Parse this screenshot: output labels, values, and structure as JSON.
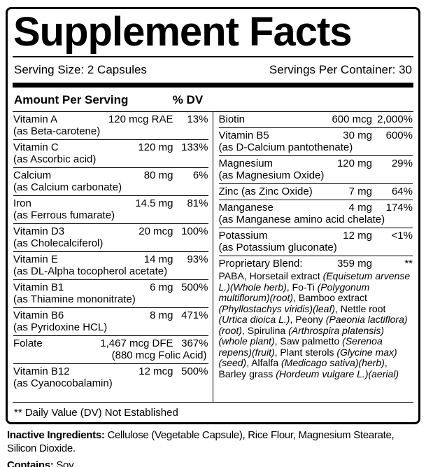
{
  "colors": {
    "text": "#000000",
    "background": "#ffffff",
    "rule": "#000000"
  },
  "panel": {
    "title": "Supplement Facts",
    "serving_size": "Serving Size: 2 Capsules",
    "servings_per_container": "Servings Per Container: 30",
    "amount_header": "Amount Per Serving",
    "dv_header": "% DV",
    "footnote": "** Daily Value (DV) Not Established"
  },
  "left_rows": [
    {
      "name": "Vitamin A",
      "sub": "(as Beta-carotene)",
      "amount": "120 mcg RAE",
      "dv": "13%"
    },
    {
      "name": "Vitamin C",
      "sub": "(as Ascorbic acid)",
      "amount": "120 mg",
      "dv": "133%"
    },
    {
      "name": "Calcium",
      "sub": "(as Calcium carbonate)",
      "amount": "80 mg",
      "dv": "6%"
    },
    {
      "name": "Iron",
      "sub": "(as Ferrous fumarate)",
      "amount": "14.5 mg",
      "dv": "81%"
    },
    {
      "name": "Vitamin D3",
      "sub": "(as Cholecalciferol)",
      "amount": "20 mcg",
      "dv": "100%"
    },
    {
      "name": "Vitamin E",
      "sub": "(as DL-Alpha tocopherol acetate)",
      "amount": "14 mg",
      "dv": "93%"
    },
    {
      "name": "Vitamin B1",
      "sub": "(as Thiamine mononitrate)",
      "amount": "6 mg",
      "dv": "500%"
    },
    {
      "name": "Vitamin B6",
      "sub": "(as Pyridoxine HCL)",
      "amount": "8 mg",
      "dv": "471%"
    },
    {
      "name": "Folate",
      "sub": "(880 mcg Folic Acid)",
      "sub_align": "right",
      "amount": "1,467 mcg DFE",
      "dv": "367%"
    },
    {
      "name": "Vitamin B12",
      "sub": "(as Cyanocobalamin)",
      "amount": "12 mcg",
      "dv": "500%"
    }
  ],
  "right_rows": [
    {
      "name": "Biotin",
      "amount": "600 mcg",
      "dv": "2,000%"
    },
    {
      "name": "Vitamin B5",
      "sub": "(as D-Calcium pantothenate)",
      "amount": "30 mg",
      "dv": "600%"
    },
    {
      "name": "Magnesium",
      "sub": "(as Magnesium Oxide)",
      "amount": "120 mg",
      "dv": "29%"
    },
    {
      "name": "Zinc (as Zinc Oxide)",
      "amount": "7 mg",
      "dv": "64%"
    },
    {
      "name": "Manganese",
      "sub": "(as Manganese amino acid chelate)",
      "amount": "4 mg",
      "dv": "174%"
    },
    {
      "name": "Potassium",
      "sub": "(as Potassium gluconate)",
      "amount": "12 mg",
      "dv": "<1%"
    }
  ],
  "proprietary_blend": {
    "name": "Proprietary Blend:",
    "amount": "359 mg",
    "dv": "**",
    "description": [
      {
        "text": "PABA, Horsetail extract ",
        "italic": false
      },
      {
        "text": "(Equisetum arvense L.)",
        "italic": true
      },
      {
        "text": "(Whole herb)",
        "italic": true
      },
      {
        "text": ", Fo-Ti ",
        "italic": false
      },
      {
        "text": "(Polygonum multiflorum)",
        "italic": true
      },
      {
        "text": "(root)",
        "italic": true
      },
      {
        "text": ", Bamboo extract ",
        "italic": false
      },
      {
        "text": "(Phyllostachys viridis)",
        "italic": true
      },
      {
        "text": "(leaf)",
        "italic": true
      },
      {
        "text": ", Nettle root ",
        "italic": false
      },
      {
        "text": "(Urtica dioica L.)",
        "italic": true
      },
      {
        "text": ", Peony ",
        "italic": false
      },
      {
        "text": "(Paeonia lactiflora)",
        "italic": true
      },
      {
        "text": "(root)",
        "italic": true
      },
      {
        "text": ", Spirulina ",
        "italic": false
      },
      {
        "text": "(Arthrospira platensis)",
        "italic": true
      },
      {
        "text": "(whole plant)",
        "italic": true
      },
      {
        "text": ", Saw palmetto ",
        "italic": false
      },
      {
        "text": "(Serenoa repens)",
        "italic": true
      },
      {
        "text": "(fruit)",
        "italic": true
      },
      {
        "text": ", Plant sterols ",
        "italic": false
      },
      {
        "text": "(Glycine max)",
        "italic": true
      },
      {
        "text": "(seed)",
        "italic": true
      },
      {
        "text": ", Alfalfa ",
        "italic": false
      },
      {
        "text": "(Medicago sativa)",
        "italic": true
      },
      {
        "text": "(herb)",
        "italic": true
      },
      {
        "text": ", Barley grass ",
        "italic": false
      },
      {
        "text": "(Hordeum vulgare L.)",
        "italic": true
      },
      {
        "text": "(aerial)",
        "italic": true
      }
    ]
  },
  "bottom": {
    "inactive_label": "Inactive Ingredients:",
    "inactive_text": " Cellulose (Vegetable Capsule), Rice Flour, Magnesium Stearate, Silicon Dioxide.",
    "contains_label": "Contains:",
    "contains_text": " Soy"
  }
}
